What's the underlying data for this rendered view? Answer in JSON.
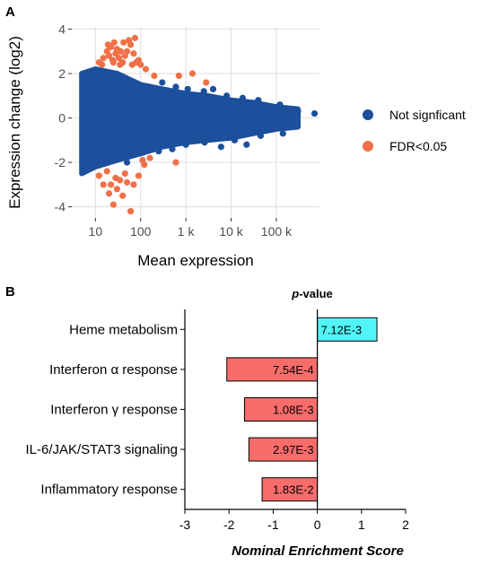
{
  "panel_a": {
    "letter": "A",
    "legend": [
      {
        "label": "Not signficant",
        "color": "#1c4f9c"
      },
      {
        "label": "FDR<0.05",
        "color": "#f07048"
      }
    ]
  },
  "panel_b": {
    "letter": "B",
    "pvalue_title_italic": "p",
    "pvalue_title_rest": "-value"
  },
  "chart_data": [
    {
      "type": "scatter",
      "xlabel": "Mean expression",
      "ylabel": "Expression change (log2)",
      "x_scale": "log10",
      "xlim": [
        3,
        900000
      ],
      "ylim": [
        -4.5,
        4.1
      ],
      "x_ticks": [
        10,
        100,
        1000,
        10000,
        100000
      ],
      "x_tick_labels": [
        "10",
        "100",
        "1 k",
        "10 k",
        "100 k"
      ],
      "y_ticks": [
        -4,
        -2,
        0,
        2,
        4
      ],
      "y_tick_labels": [
        "-4",
        "-2",
        "0",
        "2",
        "4"
      ],
      "grid": true,
      "legend_position": "right",
      "series": [
        {
          "name": "Not signficant",
          "color": "#1c4f9c",
          "envelope": [
            [
              5,
              -2.5,
              2.0
            ],
            [
              10,
              -2.2,
              2.2
            ],
            [
              30,
              -1.9,
              2.0
            ],
            [
              100,
              -1.6,
              1.5
            ],
            [
              300,
              -1.3,
              1.3
            ],
            [
              1000,
              -1.1,
              1.1
            ],
            [
              3000,
              -1.0,
              1.0
            ],
            [
              10000,
              -0.9,
              0.8
            ],
            [
              30000,
              -0.7,
              0.7
            ],
            [
              100000,
              -0.5,
              0.5
            ],
            [
              300000,
              -0.4,
              0.4
            ]
          ],
          "outliers": [
            [
              300,
              1.6
            ],
            [
              600,
              1.4
            ],
            [
              1100,
              1.3
            ],
            [
              2500,
              1.2
            ],
            [
              4000,
              1.3
            ],
            [
              8000,
              1.0
            ],
            [
              18000,
              0.9
            ],
            [
              40000,
              0.8
            ],
            [
              120000,
              0.6
            ],
            [
              300000,
              0.3
            ],
            [
              700000,
              0.2
            ],
            [
              250,
              -1.5
            ],
            [
              500,
              -1.4
            ],
            [
              1000,
              -1.2
            ],
            [
              2600,
              -1.1
            ],
            [
              6000,
              -1.3
            ],
            [
              12000,
              -1.0
            ],
            [
              22000,
              -1.2
            ],
            [
              45000,
              -0.8
            ],
            [
              140000,
              -0.7
            ],
            [
              50,
              -2.0
            ]
          ]
        },
        {
          "name": "FDR<0.05",
          "color": "#f07048",
          "points": [
            [
              12,
              2.5
            ],
            [
              15,
              2.7
            ],
            [
              18,
              3.0
            ],
            [
              20,
              2.8
            ],
            [
              22,
              3.2
            ],
            [
              24,
              2.6
            ],
            [
              26,
              3.4
            ],
            [
              28,
              2.9
            ],
            [
              30,
              3.1
            ],
            [
              33,
              2.7
            ],
            [
              36,
              3.0
            ],
            [
              40,
              2.5
            ],
            [
              45,
              2.8
            ],
            [
              50,
              3.0
            ],
            [
              55,
              3.5
            ],
            [
              60,
              3.3
            ],
            [
              65,
              2.4
            ],
            [
              70,
              2.9
            ],
            [
              75,
              3.6
            ],
            [
              80,
              2.5
            ],
            [
              90,
              2.6
            ],
            [
              14,
              2.4
            ],
            [
              19,
              3.3
            ],
            [
              25,
              2.5
            ],
            [
              35,
              2.4
            ],
            [
              42,
              3.4
            ],
            [
              100,
              2.4
            ],
            [
              130,
              2.2
            ],
            [
              200,
              1.9
            ],
            [
              700,
              1.9
            ],
            [
              1400,
              2.0
            ],
            [
              2800,
              1.6
            ],
            [
              12,
              -2.6
            ],
            [
              15,
              -3.0
            ],
            [
              18,
              -2.4
            ],
            [
              20,
              -3.4
            ],
            [
              22,
              -3.0
            ],
            [
              25,
              -3.9
            ],
            [
              28,
              -2.7
            ],
            [
              30,
              -3.2
            ],
            [
              35,
              -2.8
            ],
            [
              40,
              -3.5
            ],
            [
              50,
              -2.9
            ],
            [
              60,
              -4.2
            ],
            [
              45,
              -2.5
            ],
            [
              70,
              -3.0
            ],
            [
              90,
              -2.6
            ],
            [
              120,
              -2.1
            ],
            [
              160,
              -1.8
            ],
            [
              110,
              -1.9
            ],
            [
              600,
              -2.0
            ]
          ]
        }
      ]
    },
    {
      "type": "bar",
      "orientation": "horizontal",
      "xlabel": "Nominal Enrichment Score",
      "xlim": [
        -3,
        2
      ],
      "x_ticks": [
        -3,
        -2,
        -1,
        0,
        1,
        2
      ],
      "categories": [
        "Heme metabolism",
        "Interferon α response",
        "Interferon γ response",
        "IL-6/JAK/STAT3 signaling",
        "Inflammatory response"
      ],
      "values": [
        1.35,
        -2.05,
        -1.65,
        -1.55,
        -1.25
      ],
      "pvalue_labels": [
        "7.12E-3",
        "7.54E-4",
        "1.08E-3",
        "2.97E-3",
        "1.83E-2"
      ],
      "colors": [
        "#52f5f7",
        "#f86c6c",
        "#f86c6c",
        "#f86c6c",
        "#f86c6c"
      ]
    }
  ]
}
